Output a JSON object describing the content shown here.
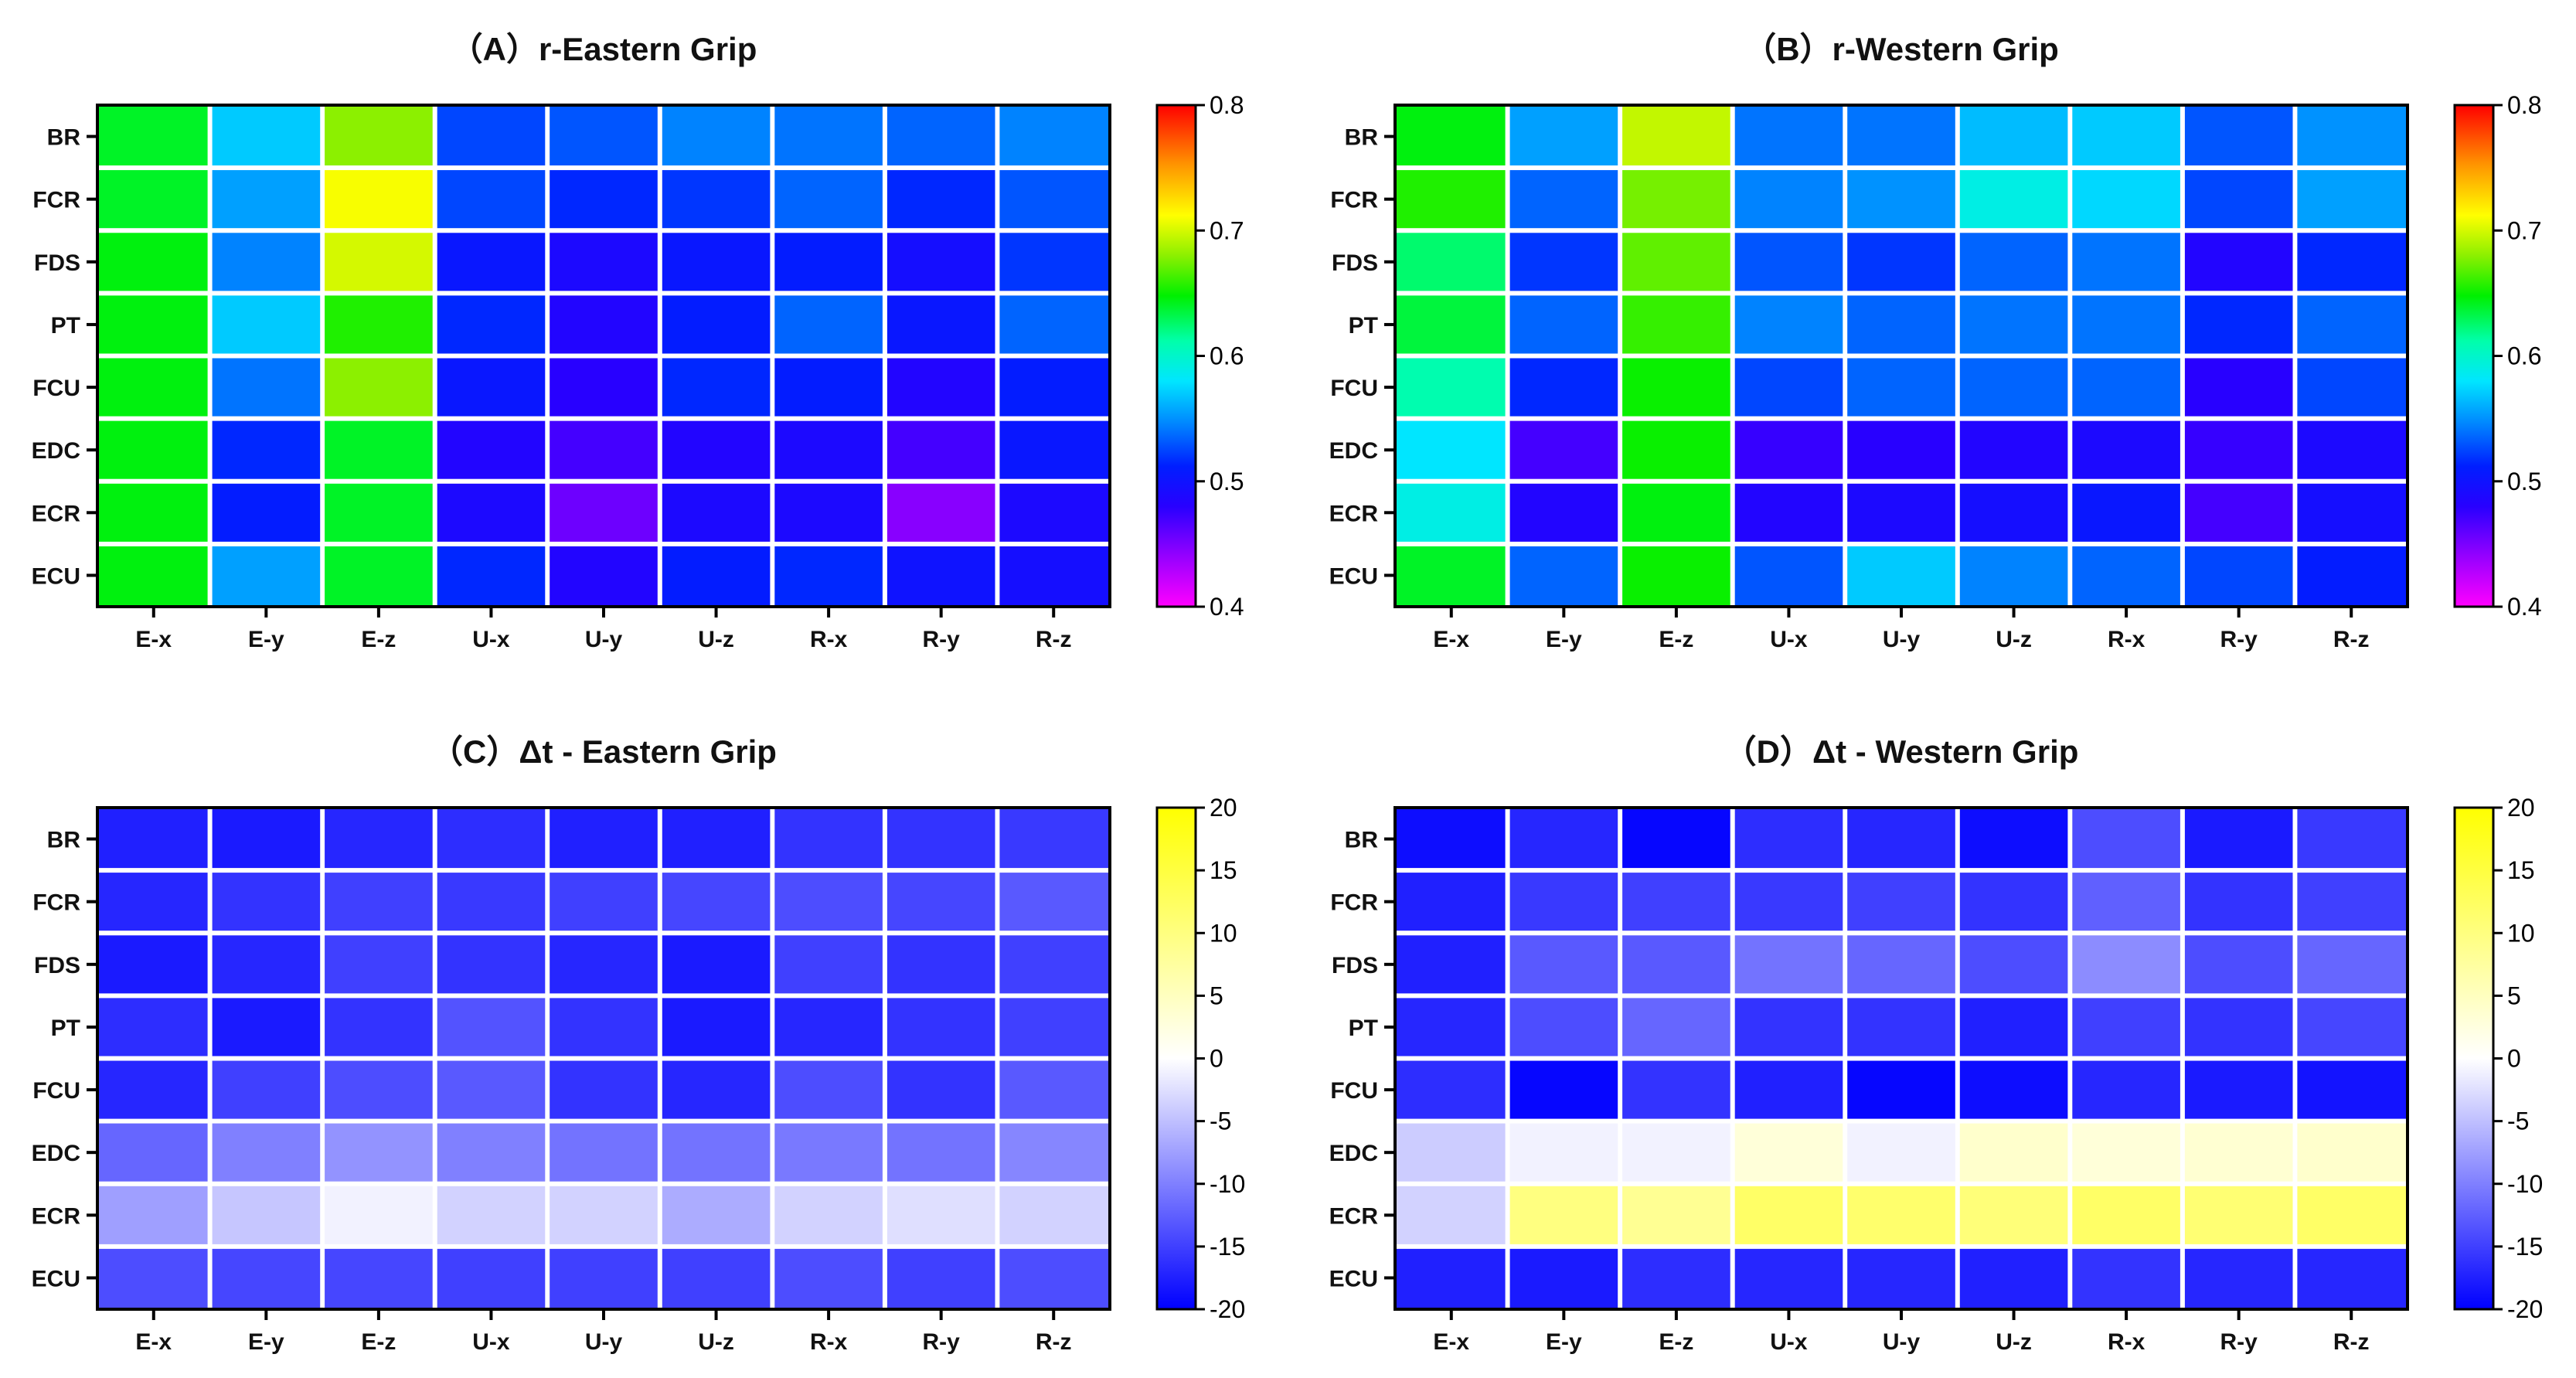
{
  "figure": {
    "panels": [
      "A",
      "B",
      "C",
      "D"
    ]
  },
  "chart_data": [
    {
      "id": "A",
      "type": "heatmap",
      "title": "（A）r-Eastern Grip",
      "rows": [
        "BR",
        "FCR",
        "FDS",
        "PT",
        "FCU",
        "EDC",
        "ECR",
        "ECU"
      ],
      "columns": [
        "E-x",
        "E-y",
        "E-z",
        "U-x",
        "U-y",
        "U-z",
        "R-x",
        "R-y",
        "R-z"
      ],
      "colorbar": {
        "scheme": "rainbow",
        "range": [
          0.4,
          0.8
        ],
        "ticks": [
          "0.8",
          "0.7",
          "0.6",
          "0.5",
          "0.4"
        ]
      },
      "values": [
        [
          0.64,
          0.57,
          0.68,
          0.525,
          0.53,
          0.545,
          0.54,
          0.535,
          0.545
        ],
        [
          0.64,
          0.555,
          0.71,
          0.525,
          0.515,
          0.52,
          0.535,
          0.515,
          0.53
        ],
        [
          0.645,
          0.545,
          0.7,
          0.505,
          0.49,
          0.505,
          0.51,
          0.495,
          0.52
        ],
        [
          0.645,
          0.57,
          0.655,
          0.515,
          0.485,
          0.51,
          0.535,
          0.505,
          0.535
        ],
        [
          0.645,
          0.54,
          0.68,
          0.505,
          0.48,
          0.515,
          0.51,
          0.485,
          0.51
        ],
        [
          0.645,
          0.515,
          0.64,
          0.485,
          0.47,
          0.485,
          0.49,
          0.47,
          0.505
        ],
        [
          0.645,
          0.51,
          0.64,
          0.49,
          0.455,
          0.49,
          0.49,
          0.445,
          0.49
        ],
        [
          0.645,
          0.555,
          0.64,
          0.515,
          0.485,
          0.51,
          0.515,
          0.5,
          0.495
        ]
      ]
    },
    {
      "id": "B",
      "type": "heatmap",
      "title": "（B）r-Western Grip",
      "rows": [
        "BR",
        "FCR",
        "FDS",
        "PT",
        "FCU",
        "EDC",
        "ECR",
        "ECU"
      ],
      "columns": [
        "E-x",
        "E-y",
        "E-z",
        "U-x",
        "U-y",
        "U-z",
        "R-x",
        "R-y",
        "R-z"
      ],
      "colorbar": {
        "scheme": "rainbow",
        "range": [
          0.4,
          0.8
        ],
        "ticks": [
          "0.8",
          "0.7",
          "0.6",
          "0.5",
          "0.4"
        ]
      },
      "values": [
        [
          0.645,
          0.555,
          0.695,
          0.54,
          0.54,
          0.565,
          0.57,
          0.53,
          0.55
        ],
        [
          0.655,
          0.535,
          0.675,
          0.545,
          0.55,
          0.59,
          0.575,
          0.525,
          0.555
        ],
        [
          0.625,
          0.52,
          0.67,
          0.53,
          0.52,
          0.535,
          0.54,
          0.485,
          0.515
        ],
        [
          0.635,
          0.535,
          0.66,
          0.545,
          0.535,
          0.54,
          0.54,
          0.515,
          0.535
        ],
        [
          0.61,
          0.515,
          0.65,
          0.525,
          0.535,
          0.535,
          0.535,
          0.48,
          0.525
        ],
        [
          0.58,
          0.47,
          0.65,
          0.475,
          0.48,
          0.485,
          0.49,
          0.475,
          0.49
        ],
        [
          0.59,
          0.485,
          0.645,
          0.485,
          0.49,
          0.495,
          0.505,
          0.47,
          0.495
        ],
        [
          0.64,
          0.535,
          0.65,
          0.53,
          0.57,
          0.545,
          0.535,
          0.525,
          0.51
        ]
      ]
    },
    {
      "id": "C",
      "type": "heatmap",
      "title": "（C）Δt - Eastern Grip",
      "rows": [
        "BR",
        "FCR",
        "FDS",
        "PT",
        "FCU",
        "EDC",
        "ECR",
        "ECU"
      ],
      "columns": [
        "E-x",
        "E-y",
        "E-z",
        "U-x",
        "U-y",
        "U-z",
        "R-x",
        "R-y",
        "R-z"
      ],
      "colorbar": {
        "scheme": "blue-white-yellow",
        "range": [
          -20,
          20
        ],
        "ticks": [
          "20",
          "15",
          "10",
          "5",
          "0",
          "-5",
          "-10",
          "-15",
          "-20"
        ]
      },
      "values": [
        [
          -17.5,
          -18.0,
          -17.0,
          -16.5,
          -17.5,
          -17.5,
          -16.0,
          -16.0,
          -15.5
        ],
        [
          -17.0,
          -16.0,
          -15.0,
          -15.5,
          -15.0,
          -14.5,
          -14.0,
          -14.5,
          -13.0
        ],
        [
          -18.0,
          -17.0,
          -15.0,
          -16.0,
          -17.0,
          -18.0,
          -15.0,
          -16.0,
          -15.0
        ],
        [
          -16.5,
          -18.0,
          -16.0,
          -13.5,
          -16.0,
          -18.0,
          -17.0,
          -16.0,
          -15.0
        ],
        [
          -17.0,
          -15.0,
          -14.0,
          -13.0,
          -16.0,
          -17.0,
          -14.0,
          -16.0,
          -13.0
        ],
        [
          -12.0,
          -10.0,
          -8.5,
          -10.0,
          -11.0,
          -11.0,
          -10.5,
          -11.0,
          -9.5
        ],
        [
          -7.5,
          -4.5,
          -1.0,
          -3.5,
          -3.5,
          -6.5,
          -3.5,
          -2.5,
          -3.5
        ],
        [
          -14.0,
          -14.5,
          -14.5,
          -15.0,
          -15.0,
          -15.0,
          -14.0,
          -15.0,
          -14.0
        ]
      ]
    },
    {
      "id": "D",
      "type": "heatmap",
      "title": "（D）Δt - Western Grip",
      "rows": [
        "BR",
        "FCR",
        "FDS",
        "PT",
        "FCU",
        "EDC",
        "ECR",
        "ECU"
      ],
      "columns": [
        "E-x",
        "E-y",
        "E-z",
        "U-x",
        "U-y",
        "U-z",
        "R-x",
        "R-y",
        "R-z"
      ],
      "colorbar": {
        "scheme": "blue-white-yellow",
        "range": [
          -20,
          20
        ],
        "ticks": [
          "20",
          "15",
          "10",
          "5",
          "0",
          "-5",
          "-10",
          "-15",
          "-20"
        ]
      },
      "values": [
        [
          -19.0,
          -17.0,
          -19.5,
          -16.5,
          -17.0,
          -19.0,
          -14.0,
          -18.0,
          -15.5
        ],
        [
          -17.5,
          -15.5,
          -15.0,
          -15.5,
          -15.0,
          -16.0,
          -12.5,
          -16.0,
          -15.0
        ],
        [
          -17.5,
          -13.0,
          -13.0,
          -11.0,
          -12.0,
          -14.0,
          -9.0,
          -14.0,
          -12.0
        ],
        [
          -17.0,
          -14.0,
          -12.0,
          -16.0,
          -16.0,
          -17.5,
          -15.0,
          -16.0,
          -14.5
        ],
        [
          -16.5,
          -19.5,
          -16.0,
          -17.5,
          -19.5,
          -19.0,
          -17.0,
          -18.0,
          -18.5
        ],
        [
          -4.0,
          -1.0,
          -1.0,
          3.0,
          -1.0,
          4.0,
          3.0,
          3.5,
          4.0
        ],
        [
          -3.5,
          10.0,
          8.5,
          12.0,
          11.5,
          10.5,
          12.0,
          11.0,
          12.0
        ],
        [
          -17.5,
          -18.0,
          -16.5,
          -17.0,
          -17.0,
          -17.5,
          -16.0,
          -17.0,
          -17.0
        ]
      ]
    }
  ]
}
